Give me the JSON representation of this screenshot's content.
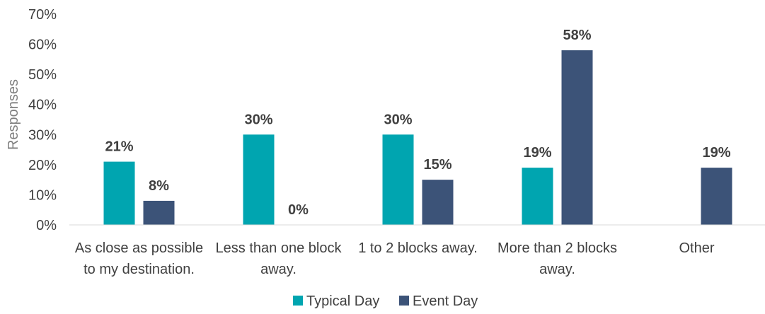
{
  "chart_data": {
    "type": "bar",
    "ylabel": "Responses",
    "xlabel": "",
    "ylim": [
      0,
      70
    ],
    "yticks": [
      "0%",
      "10%",
      "20%",
      "30%",
      "40%",
      "50%",
      "60%",
      "70%"
    ],
    "grid": false,
    "legend_position": "bottom",
    "categories": [
      [
        "As close as possible",
        "to my destination."
      ],
      [
        "Less than one block",
        "away."
      ],
      [
        "1 to 2 blocks away."
      ],
      [
        "More than 2 blocks",
        "away."
      ],
      [
        "Other"
      ]
    ],
    "series": [
      {
        "name": "Typical Day",
        "color": "#00a5b0",
        "values": [
          21,
          30,
          30,
          19,
          null
        ],
        "labels": [
          "21%",
          "30%",
          "30%",
          "19%",
          null
        ]
      },
      {
        "name": "Event Day",
        "color": "#3c5378",
        "values": [
          8,
          0,
          15,
          58,
          19
        ],
        "labels": [
          "8%",
          "0%",
          "15%",
          "58%",
          "19%"
        ]
      }
    ]
  }
}
